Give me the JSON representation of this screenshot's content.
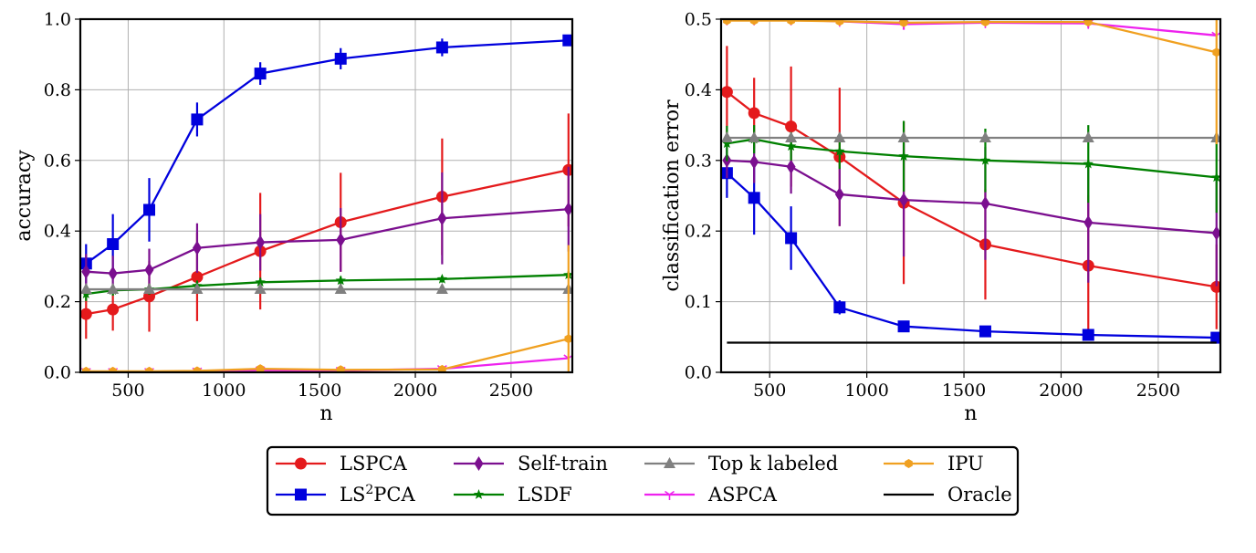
{
  "chart_data": [
    {
      "type": "line",
      "title": "",
      "xlabel": "n",
      "ylabel": "accuracy",
      "xlim": [
        250,
        2820
      ],
      "ylim": [
        0.0,
        1.0
      ],
      "xticks": [
        500,
        1000,
        1500,
        2000,
        2500
      ],
      "xtick_labels": [
        "500",
        "1000",
        "1500",
        "2000",
        "2500"
      ],
      "yticks": [
        0.0,
        0.2,
        0.4,
        0.6,
        0.8,
        1.0
      ],
      "ytick_labels": [
        "0.0",
        "0.2",
        "0.4",
        "0.6",
        "0.8",
        "1.0"
      ],
      "grid": true,
      "x": [
        280,
        420,
        610,
        860,
        1190,
        1610,
        2140,
        2800
      ],
      "series": [
        {
          "name": "LSPCA",
          "color": "#e41a1c",
          "marker": "circle",
          "values": [
            0.165,
            0.178,
            0.215,
            0.27,
            0.343,
            0.425,
            0.497,
            0.573
          ],
          "errors": [
            0.07,
            0.06,
            0.1,
            0.125,
            0.165,
            0.14,
            0.165,
            0.16
          ]
        },
        {
          "name": "LS2PCA",
          "color": "#0000dd",
          "marker": "square",
          "values": [
            0.308,
            0.363,
            0.46,
            0.716,
            0.846,
            0.888,
            0.92,
            0.94
          ],
          "errors": [
            0.055,
            0.085,
            0.09,
            0.048,
            0.032,
            0.03,
            0.025,
            0.012
          ]
        },
        {
          "name": "Self-train",
          "color": "#7b0f8f",
          "marker": "diamond",
          "values": [
            0.285,
            0.28,
            0.29,
            0.352,
            0.368,
            0.375,
            0.436,
            0.462
          ],
          "errors": [
            0.05,
            0.05,
            0.06,
            0.07,
            0.08,
            0.09,
            0.13,
            0.12
          ]
        },
        {
          "name": "LSDF",
          "color": "#008000",
          "marker": "star",
          "values": [
            0.222,
            0.232,
            0.235,
            0.245,
            0.255,
            0.26,
            0.264,
            0.276
          ],
          "errors": [
            0.02,
            0.015,
            0.015,
            0.015,
            0.012,
            0.012,
            0.01,
            0.01
          ]
        },
        {
          "name": "Top k labeled",
          "color": "#808080",
          "marker": "triangle",
          "values": [
            0.235,
            0.235,
            0.235,
            0.235,
            0.235,
            0.235,
            0.235,
            0.235
          ],
          "errors": [
            0,
            0,
            0,
            0,
            0,
            0,
            0,
            0
          ]
        },
        {
          "name": "ASPCA",
          "color": "#ee22ee",
          "marker": "tri",
          "values": [
            0.002,
            0.002,
            0.002,
            0.003,
            0.006,
            0.005,
            0.01,
            0.04
          ],
          "errors": [
            0,
            0,
            0,
            0,
            0,
            0,
            0,
            0
          ]
        },
        {
          "name": "IPU",
          "color": "#f0a020",
          "marker": "hexagon",
          "values": [
            0.003,
            0.003,
            0.003,
            0.004,
            0.01,
            0.007,
            0.008,
            0.095
          ],
          "errors": [
            0,
            0,
            0,
            0,
            0,
            0,
            0,
            0.265
          ]
        }
      ]
    },
    {
      "type": "line",
      "title": "",
      "xlabel": "n",
      "ylabel": "classification error",
      "xlim": [
        250,
        2820
      ],
      "ylim": [
        0.0,
        0.5
      ],
      "xticks": [
        500,
        1000,
        1500,
        2000,
        2500
      ],
      "xtick_labels": [
        "500",
        "1000",
        "1500",
        "2000",
        "2500"
      ],
      "yticks": [
        0.0,
        0.1,
        0.2,
        0.3,
        0.4,
        0.5
      ],
      "ytick_labels": [
        "0.0",
        "0.1",
        "0.2",
        "0.3",
        "0.4",
        "0.5"
      ],
      "grid": true,
      "x": [
        280,
        420,
        610,
        860,
        1190,
        1610,
        2140,
        2800
      ],
      "series": [
        {
          "name": "LSPCA",
          "color": "#e41a1c",
          "marker": "circle",
          "values": [
            0.397,
            0.367,
            0.348,
            0.305,
            0.24,
            0.181,
            0.151,
            0.121
          ],
          "errors": [
            0.065,
            0.05,
            0.085,
            0.098,
            0.115,
            0.078,
            0.1,
            0.06
          ]
        },
        {
          "name": "LS2PCA",
          "color": "#0000dd",
          "marker": "square",
          "values": [
            0.282,
            0.247,
            0.19,
            0.092,
            0.065,
            0.058,
            0.053,
            0.049
          ],
          "errors": [
            0.035,
            0.052,
            0.045,
            0.01,
            0.005,
            0.005,
            0.005,
            0.004
          ]
        },
        {
          "name": "Self-train",
          "color": "#7b0f8f",
          "marker": "diamond",
          "values": [
            0.3,
            0.298,
            0.291,
            0.252,
            0.244,
            0.239,
            0.212,
            0.197
          ],
          "errors": [
            0.025,
            0.03,
            0.038,
            0.045,
            0.08,
            0.08,
            0.085,
            0.075
          ]
        },
        {
          "name": "LSDF",
          "color": "#008000",
          "marker": "star",
          "values": [
            0.324,
            0.33,
            0.32,
            0.313,
            0.306,
            0.3,
            0.295,
            0.276
          ],
          "errors": [
            0.025,
            0.02,
            0.02,
            0.025,
            0.05,
            0.045,
            0.055,
            0.05
          ]
        },
        {
          "name": "Top k labeled",
          "color": "#808080",
          "marker": "triangle",
          "values": [
            0.332,
            0.332,
            0.332,
            0.332,
            0.332,
            0.332,
            0.332,
            0.332
          ],
          "errors": [
            0,
            0,
            0,
            0,
            0,
            0,
            0,
            0
          ]
        },
        {
          "name": "ASPCA",
          "color": "#ee22ee",
          "marker": "tri",
          "values": [
            0.499,
            0.499,
            0.499,
            0.497,
            0.493,
            0.495,
            0.494,
            0.477
          ],
          "errors": [
            0,
            0,
            0,
            0,
            0.008,
            0,
            0.006,
            0
          ]
        },
        {
          "name": "IPU",
          "color": "#f0a020",
          "marker": "hexagon",
          "values": [
            0.498,
            0.498,
            0.498,
            0.497,
            0.495,
            0.496,
            0.496,
            0.453
          ],
          "errors": [
            0,
            0,
            0,
            0,
            0,
            0,
            0,
            0.13
          ]
        },
        {
          "name": "Oracle",
          "color": "#000000",
          "marker": "none",
          "values": [
            0.042,
            0.042,
            0.042,
            0.042,
            0.042,
            0.042,
            0.042,
            0.042
          ],
          "errors": [
            0,
            0,
            0,
            0,
            0,
            0,
            0,
            0
          ]
        }
      ]
    }
  ],
  "legend": {
    "placement": "bottom-center",
    "entries": [
      {
        "label_html": "LSPCA",
        "plain": "LSPCA",
        "color": "#e41a1c",
        "marker": "circle"
      },
      {
        "label_html": "LS<tspan baseline-shift='super' font-size='14'>2</tspan>PCA",
        "plain": "LS2PCA",
        "color": "#0000dd",
        "marker": "square"
      },
      {
        "label_html": "Self-train",
        "plain": "Self-train",
        "color": "#7b0f8f",
        "marker": "diamond"
      },
      {
        "label_html": "LSDF",
        "plain": "LSDF",
        "color": "#008000",
        "marker": "star"
      },
      {
        "label_html": "Top k labeled",
        "plain": "Top k labeled",
        "color": "#808080",
        "marker": "triangle"
      },
      {
        "label_html": "ASPCA",
        "plain": "ASPCA",
        "color": "#ee22ee",
        "marker": "tri"
      },
      {
        "label_html": "IPU",
        "plain": "IPU",
        "color": "#f0a020",
        "marker": "hexagon"
      },
      {
        "label_html": "Oracle",
        "plain": "Oracle",
        "color": "#000000",
        "marker": "none"
      }
    ]
  }
}
